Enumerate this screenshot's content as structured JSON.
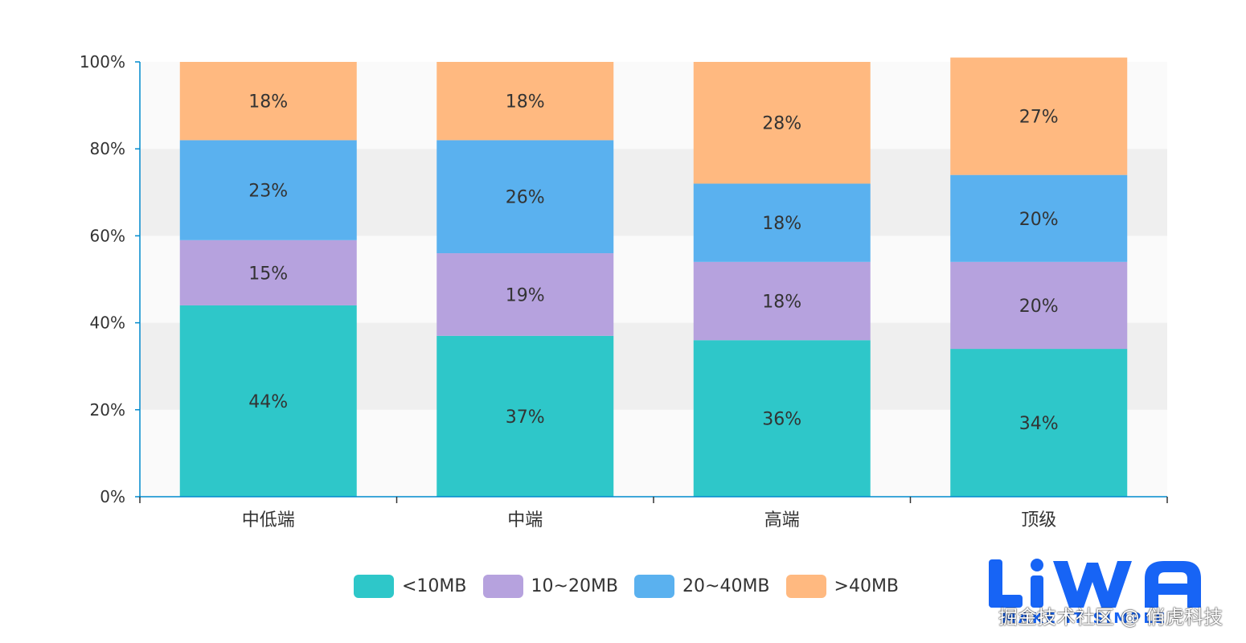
{
  "chart_data": {
    "type": "bar",
    "stacked": true,
    "categories": [
      "中低端",
      "中端",
      "高端",
      "顶级"
    ],
    "series": [
      {
        "name": "<10MB",
        "color": "#2ec7c9",
        "values": [
          44,
          37,
          36,
          34
        ]
      },
      {
        "name": "10~20MB",
        "color": "#b6a2de",
        "values": [
          15,
          19,
          18,
          20
        ]
      },
      {
        "name": "20~40MB",
        "color": "#5ab1ef",
        "values": [
          23,
          26,
          18,
          20
        ]
      },
      {
        "name": ">40MB",
        "color": "#ffb980",
        "values": [
          18,
          18,
          28,
          27
        ]
      }
    ],
    "title": "",
    "xlabel": "",
    "ylabel": "",
    "ylim": [
      0,
      100
    ],
    "yticks": [
      "0%",
      "20%",
      "40%",
      "60%",
      "80%",
      "100%"
    ],
    "data_label_suffix": "%",
    "grid": true,
    "grid_band_colors": [
      "#fafafa",
      "#efefef"
    ],
    "axis_color": "#008acd",
    "legend_position": "bottom"
  },
  "legend": [
    {
      "label": "<10MB",
      "color": "#2ec7c9"
    },
    {
      "label": "10~20MB",
      "color": "#b6a2de"
    },
    {
      "label": "20~40MB",
      "color": "#5ab1ef"
    },
    {
      "label": ">40MB",
      "color": "#ffb980"
    }
  ],
  "watermark": {
    "logo_text": "LiWA",
    "sub_text": "MAKE IT SIMPLE",
    "text": "掘金技术社区 @ 俏虎科技"
  }
}
